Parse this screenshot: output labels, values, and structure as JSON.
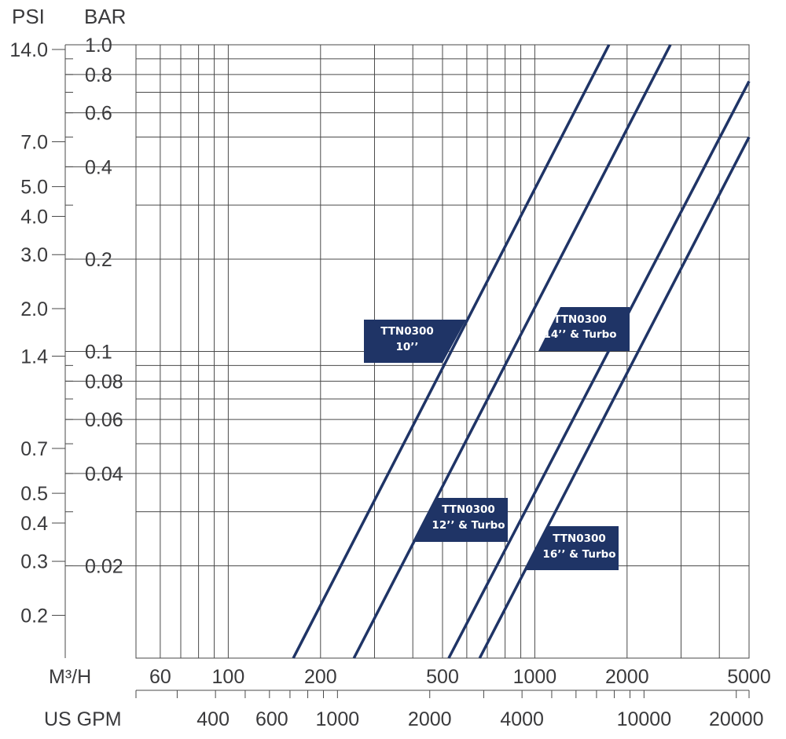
{
  "chart_data": {
    "type": "line",
    "x_scale": "log",
    "y_scale": "log",
    "grid": true,
    "axes": {
      "psi": {
        "title": "PSI",
        "ticks": [
          14.0,
          7.0,
          5.0,
          4.0,
          3.0,
          2.0,
          1.4,
          0.7,
          0.5,
          0.4,
          0.3,
          0.2
        ],
        "tick_labels": [
          "14.0",
          "7.0",
          "5.0",
          "4.0",
          "3.0",
          "2.0",
          "1.4",
          "0.7",
          "0.5",
          "0.4",
          "0.3",
          "0.2"
        ]
      },
      "bar": {
        "title": "BAR",
        "ylim": [
          0.01,
          1.0
        ],
        "ticks": [
          1.0,
          0.8,
          0.6,
          0.4,
          0.2,
          0.1,
          0.08,
          0.06,
          0.04,
          0.02
        ],
        "tick_labels": [
          "1.0",
          "0.8",
          "0.6",
          "0.4",
          "0.2",
          "0.1",
          "0.08",
          "0.06",
          "0.04",
          "0.02"
        ]
      },
      "m3h": {
        "title": "M³/H",
        "xlim": [
          50,
          5000
        ],
        "ticks": [
          60,
          100,
          200,
          500,
          1000,
          2000,
          5000
        ],
        "tick_labels": [
          "60",
          "100",
          "200",
          "500",
          "1000",
          "2000",
          "5000"
        ]
      },
      "gpm": {
        "title": "US GPM",
        "ticks": [
          400,
          600,
          1000,
          2000,
          4000,
          10000,
          20000
        ],
        "tick_labels": [
          "400",
          "600",
          "1000",
          "2000",
          "4000",
          "10000",
          "20000"
        ]
      }
    },
    "series": [
      {
        "name": "TTN0300 10\"",
        "label_lines": [
          "TTN0300",
          "10’’"
        ],
        "x_unit": "M3/H",
        "y_unit": "BAR",
        "points": [
          [
            163,
            0.01
          ],
          [
            1746,
            1.0
          ]
        ]
      },
      {
        "name": "TTN0300 12\" & Turbo",
        "label_lines": [
          "TTN0300",
          "12’’ & Turbo"
        ],
        "x_unit": "M3/H",
        "y_unit": "BAR",
        "points": [
          [
            257,
            0.01
          ],
          [
            2770,
            1.0
          ]
        ]
      },
      {
        "name": "TTN0300 14\" & Turbo",
        "label_lines": [
          "TTN0300",
          "14’’ & Turbo"
        ],
        "x_unit": "M3/H",
        "y_unit": "BAR",
        "points": [
          [
            524,
            0.01
          ],
          [
            5000,
            0.76
          ]
        ]
      },
      {
        "name": "TTN0300 16\" & Turbo",
        "label_lines": [
          "TTN0300",
          "16’’ & Turbo"
        ],
        "x_unit": "M3/H",
        "y_unit": "BAR",
        "points": [
          [
            661,
            0.01
          ],
          [
            5000,
            0.5
          ]
        ]
      }
    ],
    "colors": {
      "line": "#1f3466",
      "label_bg": "#1f3466",
      "label_text": "#ffffff",
      "grid": "#4a4a4a",
      "text": "#3a3a3c"
    }
  }
}
